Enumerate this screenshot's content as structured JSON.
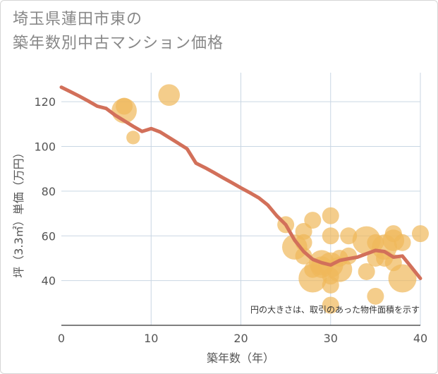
{
  "title": {
    "line1": "埼玉県蓮田市東の",
    "line2": "築年数別中古マンション価格"
  },
  "colors": {
    "bubble": "#f0b85a",
    "line": "#d2705a",
    "grid": "#c9d6e3",
    "axis": "#555555"
  },
  "chart_data": {
    "type": "scatter",
    "xlabel": "築年数（年）",
    "ylabel": "坪（3.3㎡）単価（万円）",
    "xlim": [
      0,
      40
    ],
    "ylim": [
      20,
      133
    ],
    "xticks": [
      0,
      10,
      20,
      30,
      40
    ],
    "yticks": [
      40,
      60,
      80,
      100,
      120
    ],
    "grid": true,
    "annotation": "円の大きさは、取引のあった物件面積を示す",
    "scatter": [
      {
        "x": 7,
        "y": 116,
        "size": 3
      },
      {
        "x": 7,
        "y": 118,
        "size": 1
      },
      {
        "x": 8,
        "y": 104,
        "size": 0.5
      },
      {
        "x": 12,
        "y": 123,
        "size": 2
      },
      {
        "x": 25,
        "y": 65,
        "size": 1
      },
      {
        "x": 26,
        "y": 55,
        "size": 3
      },
      {
        "x": 27,
        "y": 62,
        "size": 1
      },
      {
        "x": 27,
        "y": 57,
        "size": 1
      },
      {
        "x": 27,
        "y": 51,
        "size": 1
      },
      {
        "x": 28,
        "y": 67,
        "size": 1
      },
      {
        "x": 28,
        "y": 45,
        "size": 1
      },
      {
        "x": 28,
        "y": 41,
        "size": 4
      },
      {
        "x": 29,
        "y": 48,
        "size": 3
      },
      {
        "x": 29,
        "y": 46,
        "size": 2
      },
      {
        "x": 30,
        "y": 69,
        "size": 1
      },
      {
        "x": 30,
        "y": 60,
        "size": 1
      },
      {
        "x": 30,
        "y": 47,
        "size": 3
      },
      {
        "x": 30,
        "y": 42,
        "size": 1
      },
      {
        "x": 30,
        "y": 38,
        "size": 1
      },
      {
        "x": 30,
        "y": 29,
        "size": 1
      },
      {
        "x": 31,
        "y": 45,
        "size": 3
      },
      {
        "x": 31,
        "y": 50,
        "size": 1
      },
      {
        "x": 32,
        "y": 60,
        "size": 1
      },
      {
        "x": 32,
        "y": 51,
        "size": 1
      },
      {
        "x": 34,
        "y": 58,
        "size": 4
      },
      {
        "x": 34,
        "y": 44,
        "size": 1
      },
      {
        "x": 35,
        "y": 57,
        "size": 1
      },
      {
        "x": 35,
        "y": 50,
        "size": 1
      },
      {
        "x": 35,
        "y": 33,
        "size": 1
      },
      {
        "x": 36,
        "y": 55,
        "size": 3
      },
      {
        "x": 36,
        "y": 50,
        "size": 1
      },
      {
        "x": 37,
        "y": 61,
        "size": 1
      },
      {
        "x": 37,
        "y": 58,
        "size": 2
      },
      {
        "x": 37,
        "y": 48,
        "size": 1
      },
      {
        "x": 38,
        "y": 57,
        "size": 1
      },
      {
        "x": 38,
        "y": 41,
        "size": 4
      },
      {
        "x": 40,
        "y": 61,
        "size": 1
      }
    ],
    "line": {
      "x": [
        0,
        1,
        2,
        3,
        4,
        5,
        6,
        7,
        8,
        9,
        10,
        11,
        12,
        13,
        14,
        15,
        16,
        17,
        18,
        19,
        20,
        21,
        22,
        23,
        24,
        25,
        26,
        27,
        28,
        29,
        30,
        31,
        32,
        33,
        34,
        35,
        36,
        37,
        38,
        39,
        40
      ],
      "y": [
        126.5,
        124.5,
        122.5,
        120.3,
        118,
        117,
        114,
        111.5,
        109,
        106.7,
        108,
        106.5,
        104,
        101.5,
        99,
        92.5,
        90.5,
        88.3,
        86,
        83.8,
        81.5,
        79.3,
        77,
        73.8,
        69,
        65,
        58,
        53,
        49.5,
        48,
        47,
        49,
        49.8,
        50.5,
        52,
        53.5,
        53,
        50.5,
        51,
        46,
        41
      ]
    }
  }
}
